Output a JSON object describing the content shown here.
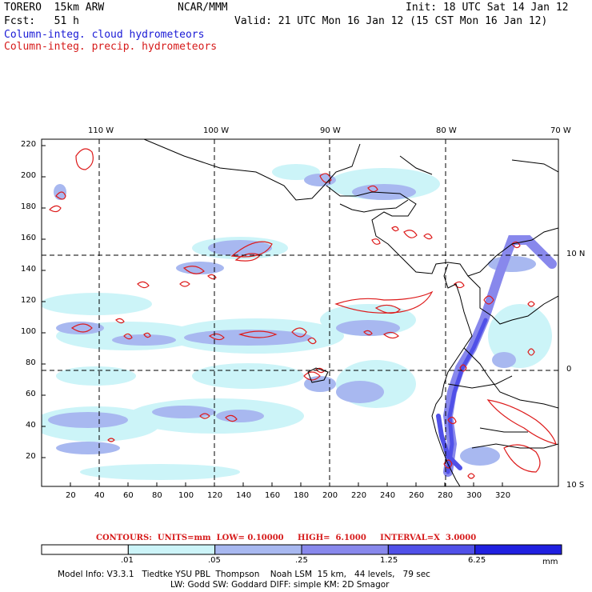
{
  "header": {
    "model": "TORERO  15km ARW",
    "org": "NCAR/MMM",
    "init": "Init: 18 UTC Sat 14 Jan 12",
    "fcst": "Fcst:   51 h",
    "valid": "Valid: 21 UTC Mon 16 Jan 12 (15 CST Mon 16 Jan 12)",
    "field1": "Column-integ. cloud hydrometeors",
    "field2": "Column-integ. precip. hydrometeors"
  },
  "map": {
    "top_lon_labels": [
      "110 W",
      "100 W",
      "90 W",
      "80 W",
      "70 W"
    ],
    "right_lat_labels": [
      "10 N",
      "0",
      "10 S"
    ],
    "y_ticks": [
      "220",
      "200",
      "180",
      "160",
      "140",
      "120",
      "100",
      "80",
      "60",
      "40",
      "20"
    ],
    "x_ticks": [
      "20",
      "40",
      "60",
      "80",
      "100",
      "120",
      "140",
      "160",
      "180",
      "200",
      "220",
      "240",
      "260",
      "280",
      "300",
      "320"
    ]
  },
  "contours_caption": "CONTOURS:  UNITS=mm  LOW= 0.10000     HIGH=  6.1000     INTERVAL=X  3.0000",
  "colorbar": {
    "labels": [
      ".01",
      ".05",
      ".25",
      "1.25",
      "6.25"
    ],
    "unit": "mm",
    "colors": [
      "#ffffff",
      "#ccf4f8",
      "#a8b8f0",
      "#8888ec",
      "#5050e8",
      "#2020e0"
    ]
  },
  "footer": {
    "line1": "Model Info: V3.3.1   Tiedtke YSU PBL  Thompson    Noah LSM  15 km,   44 levels,   79 sec",
    "line2": "LW: Godd SW: Goddard DIFF: simple KM: 2D Smagor"
  }
}
